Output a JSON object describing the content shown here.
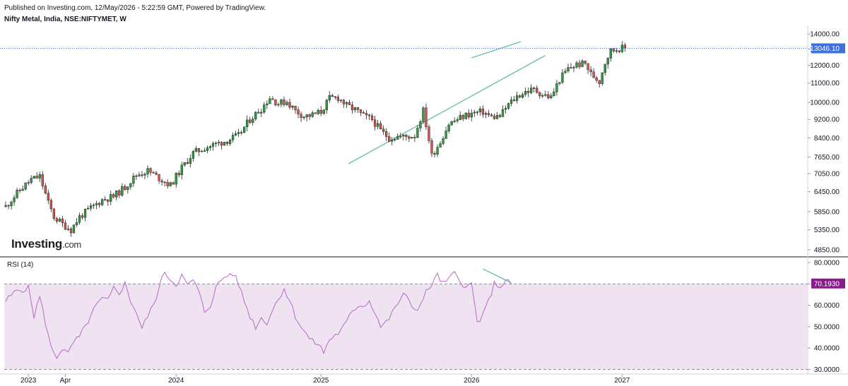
{
  "header": {
    "published": "Published on Investing.com, 12/May/2026 - 5:22:59 GMT, Powered by TradingView.",
    "symbol": "Nifty Metal, India, NSE:NIFTYMET, W"
  },
  "logo": {
    "brand": "Investing",
    "suffix": ".com"
  },
  "colors": {
    "up": "#26a69a",
    "up_fill": "#2e9e3f",
    "down": "#ef5350",
    "down_fill": "#d9534f",
    "wick": "#222222",
    "trendline": "#53b8a8",
    "rsi_line": "#b66ac9",
    "rsi_band": "#efe3f2",
    "price_tag": "#3f6fd8",
    "rsi_tag": "#8a1b8c",
    "price_ref": "#3f6fd8"
  },
  "chart_data": [
    {
      "type": "candlestick",
      "title": "Nifty Metal, India, NSE:NIFTYMET, W",
      "x_ticks": [
        "2023",
        "Apr",
        "2024",
        "2025",
        "2026",
        "2027"
      ],
      "y_ticks": [
        4850,
        5350,
        5850,
        6450,
        7050,
        7650,
        8400,
        9200,
        10000,
        11000,
        12000,
        13000,
        14000
      ],
      "y_tick_labels": [
        "4850.00",
        "5350.00",
        "5850.00",
        "6450.00",
        "7050.00",
        "7650.00",
        "8400.00",
        "9200.00",
        "10000.00",
        "11000.00",
        "12000.00",
        "13000.00",
        "14000.00"
      ],
      "log_scale": true,
      "last_price": 13046.1,
      "last_price_label": "13046.10",
      "trendlines": [
        {
          "from": [
            "2025-03",
            7400
          ],
          "to": [
            "2026-07",
            12600
          ]
        },
        {
          "from": [
            "2026-01",
            12450
          ],
          "to": [
            "2026-05",
            13480
          ]
        }
      ],
      "waypoints": [
        [
          0,
          6000
        ],
        [
          5,
          6500
        ],
        [
          9,
          6850
        ],
        [
          12,
          6950
        ],
        [
          15,
          6100
        ],
        [
          17,
          5700
        ],
        [
          20,
          5500
        ],
        [
          23,
          5350
        ],
        [
          26,
          5700
        ],
        [
          30,
          5950
        ],
        [
          34,
          6200
        ],
        [
          38,
          6300
        ],
        [
          42,
          6600
        ],
        [
          46,
          7000
        ],
        [
          50,
          7150
        ],
        [
          54,
          6900
        ],
        [
          58,
          6650
        ],
        [
          62,
          7250
        ],
        [
          66,
          7800
        ],
        [
          70,
          8000
        ],
        [
          74,
          8150
        ],
        [
          78,
          8300
        ],
        [
          82,
          8500
        ],
        [
          86,
          9200
        ],
        [
          90,
          9700
        ],
        [
          93,
          10250
        ],
        [
          96,
          9950
        ],
        [
          99,
          10050
        ],
        [
          102,
          9600
        ],
        [
          105,
          9350
        ],
        [
          108,
          9400
        ],
        [
          111,
          9550
        ],
        [
          114,
          10200
        ],
        [
          117,
          10250
        ],
        [
          120,
          9850
        ],
        [
          123,
          9650
        ],
        [
          126,
          9350
        ],
        [
          129,
          9200
        ],
        [
          132,
          8700
        ],
        [
          135,
          8400
        ],
        [
          138,
          8450
        ],
        [
          141,
          8450
        ],
        [
          144,
          8500
        ],
        [
          147,
          9600
        ],
        [
          150,
          7700
        ],
        [
          153,
          8250
        ],
        [
          156,
          9000
        ],
        [
          159,
          9200
        ],
        [
          162,
          9400
        ],
        [
          165,
          9500
        ],
        [
          168,
          9550
        ],
        [
          171,
          9300
        ],
        [
          174,
          9350
        ],
        [
          177,
          9900
        ],
        [
          180,
          10300
        ],
        [
          183,
          10550
        ],
        [
          186,
          10650
        ],
        [
          189,
          10400
        ],
        [
          192,
          10250
        ],
        [
          195,
          11200
        ],
        [
          198,
          11800
        ],
        [
          201,
          12050
        ],
        [
          204,
          12100
        ],
        [
          206,
          11500
        ],
        [
          209,
          11100
        ],
        [
          211,
          12200
        ],
        [
          213,
          12900
        ],
        [
          216,
          13050
        ],
        [
          218,
          13046.1
        ]
      ]
    },
    {
      "type": "line",
      "title": "RSI (14)",
      "y_ticks": [
        30,
        40,
        50,
        60,
        70,
        80
      ],
      "y_tick_labels": [
        "30.0000",
        "40.0000",
        "50.0000",
        "60.0000",
        "70.0000",
        "80.0000"
      ],
      "ylim": [
        28.5,
        82
      ],
      "band": [
        30,
        70
      ],
      "last_value": 70.193,
      "last_value_label": "70.1930",
      "waypoints": [
        [
          0,
          62
        ],
        [
          4,
          67
        ],
        [
          8,
          68
        ],
        [
          10,
          55
        ],
        [
          12,
          64
        ],
        [
          14,
          52
        ],
        [
          16,
          40
        ],
        [
          18,
          36
        ],
        [
          20,
          40
        ],
        [
          22,
          37
        ],
        [
          24,
          43
        ],
        [
          26,
          45
        ],
        [
          28,
          50
        ],
        [
          30,
          55
        ],
        [
          32,
          60
        ],
        [
          34,
          63
        ],
        [
          36,
          62
        ],
        [
          38,
          68
        ],
        [
          40,
          66
        ],
        [
          42,
          70
        ],
        [
          44,
          62
        ],
        [
          46,
          57
        ],
        [
          48,
          49
        ],
        [
          50,
          55
        ],
        [
          52,
          60
        ],
        [
          54,
          68
        ],
        [
          56,
          76
        ],
        [
          58,
          72
        ],
        [
          60,
          70
        ],
        [
          62,
          74
        ],
        [
          64,
          69
        ],
        [
          66,
          72
        ],
        [
          68,
          66
        ],
        [
          70,
          57
        ],
        [
          72,
          60
        ],
        [
          74,
          68
        ],
        [
          76,
          72
        ],
        [
          78,
          74
        ],
        [
          80,
          75
        ],
        [
          82,
          70
        ],
        [
          84,
          62
        ],
        [
          86,
          55
        ],
        [
          88,
          50
        ],
        [
          90,
          54
        ],
        [
          92,
          52
        ],
        [
          94,
          58
        ],
        [
          96,
          63
        ],
        [
          98,
          68
        ],
        [
          100,
          62
        ],
        [
          102,
          55
        ],
        [
          104,
          50
        ],
        [
          106,
          46
        ],
        [
          108,
          43
        ],
        [
          110,
          42
        ],
        [
          112,
          38
        ],
        [
          114,
          44
        ],
        [
          116,
          46
        ],
        [
          118,
          48
        ],
        [
          120,
          52
        ],
        [
          122,
          57
        ],
        [
          124,
          60
        ],
        [
          126,
          60
        ],
        [
          128,
          62
        ],
        [
          130,
          57
        ],
        [
          132,
          50
        ],
        [
          134,
          52
        ],
        [
          136,
          56
        ],
        [
          138,
          61
        ],
        [
          140,
          65
        ],
        [
          142,
          62
        ],
        [
          144,
          58
        ],
        [
          146,
          60
        ],
        [
          148,
          66
        ],
        [
          150,
          70
        ],
        [
          152,
          74
        ],
        [
          154,
          70
        ],
        [
          156,
          72
        ],
        [
          158,
          75
        ],
        [
          160,
          72
        ],
        [
          162,
          68
        ],
        [
          164,
          70
        ],
        [
          166,
          52
        ],
        [
          168,
          55
        ],
        [
          170,
          62
        ],
        [
          172,
          70
        ],
        [
          174,
          69
        ],
        [
          176,
          71
        ],
        [
          178,
          70.193
        ]
      ],
      "divergence_line": {
        "from": [
          168,
          77
        ],
        "to": [
          178,
          70.5
        ]
      }
    }
  ]
}
